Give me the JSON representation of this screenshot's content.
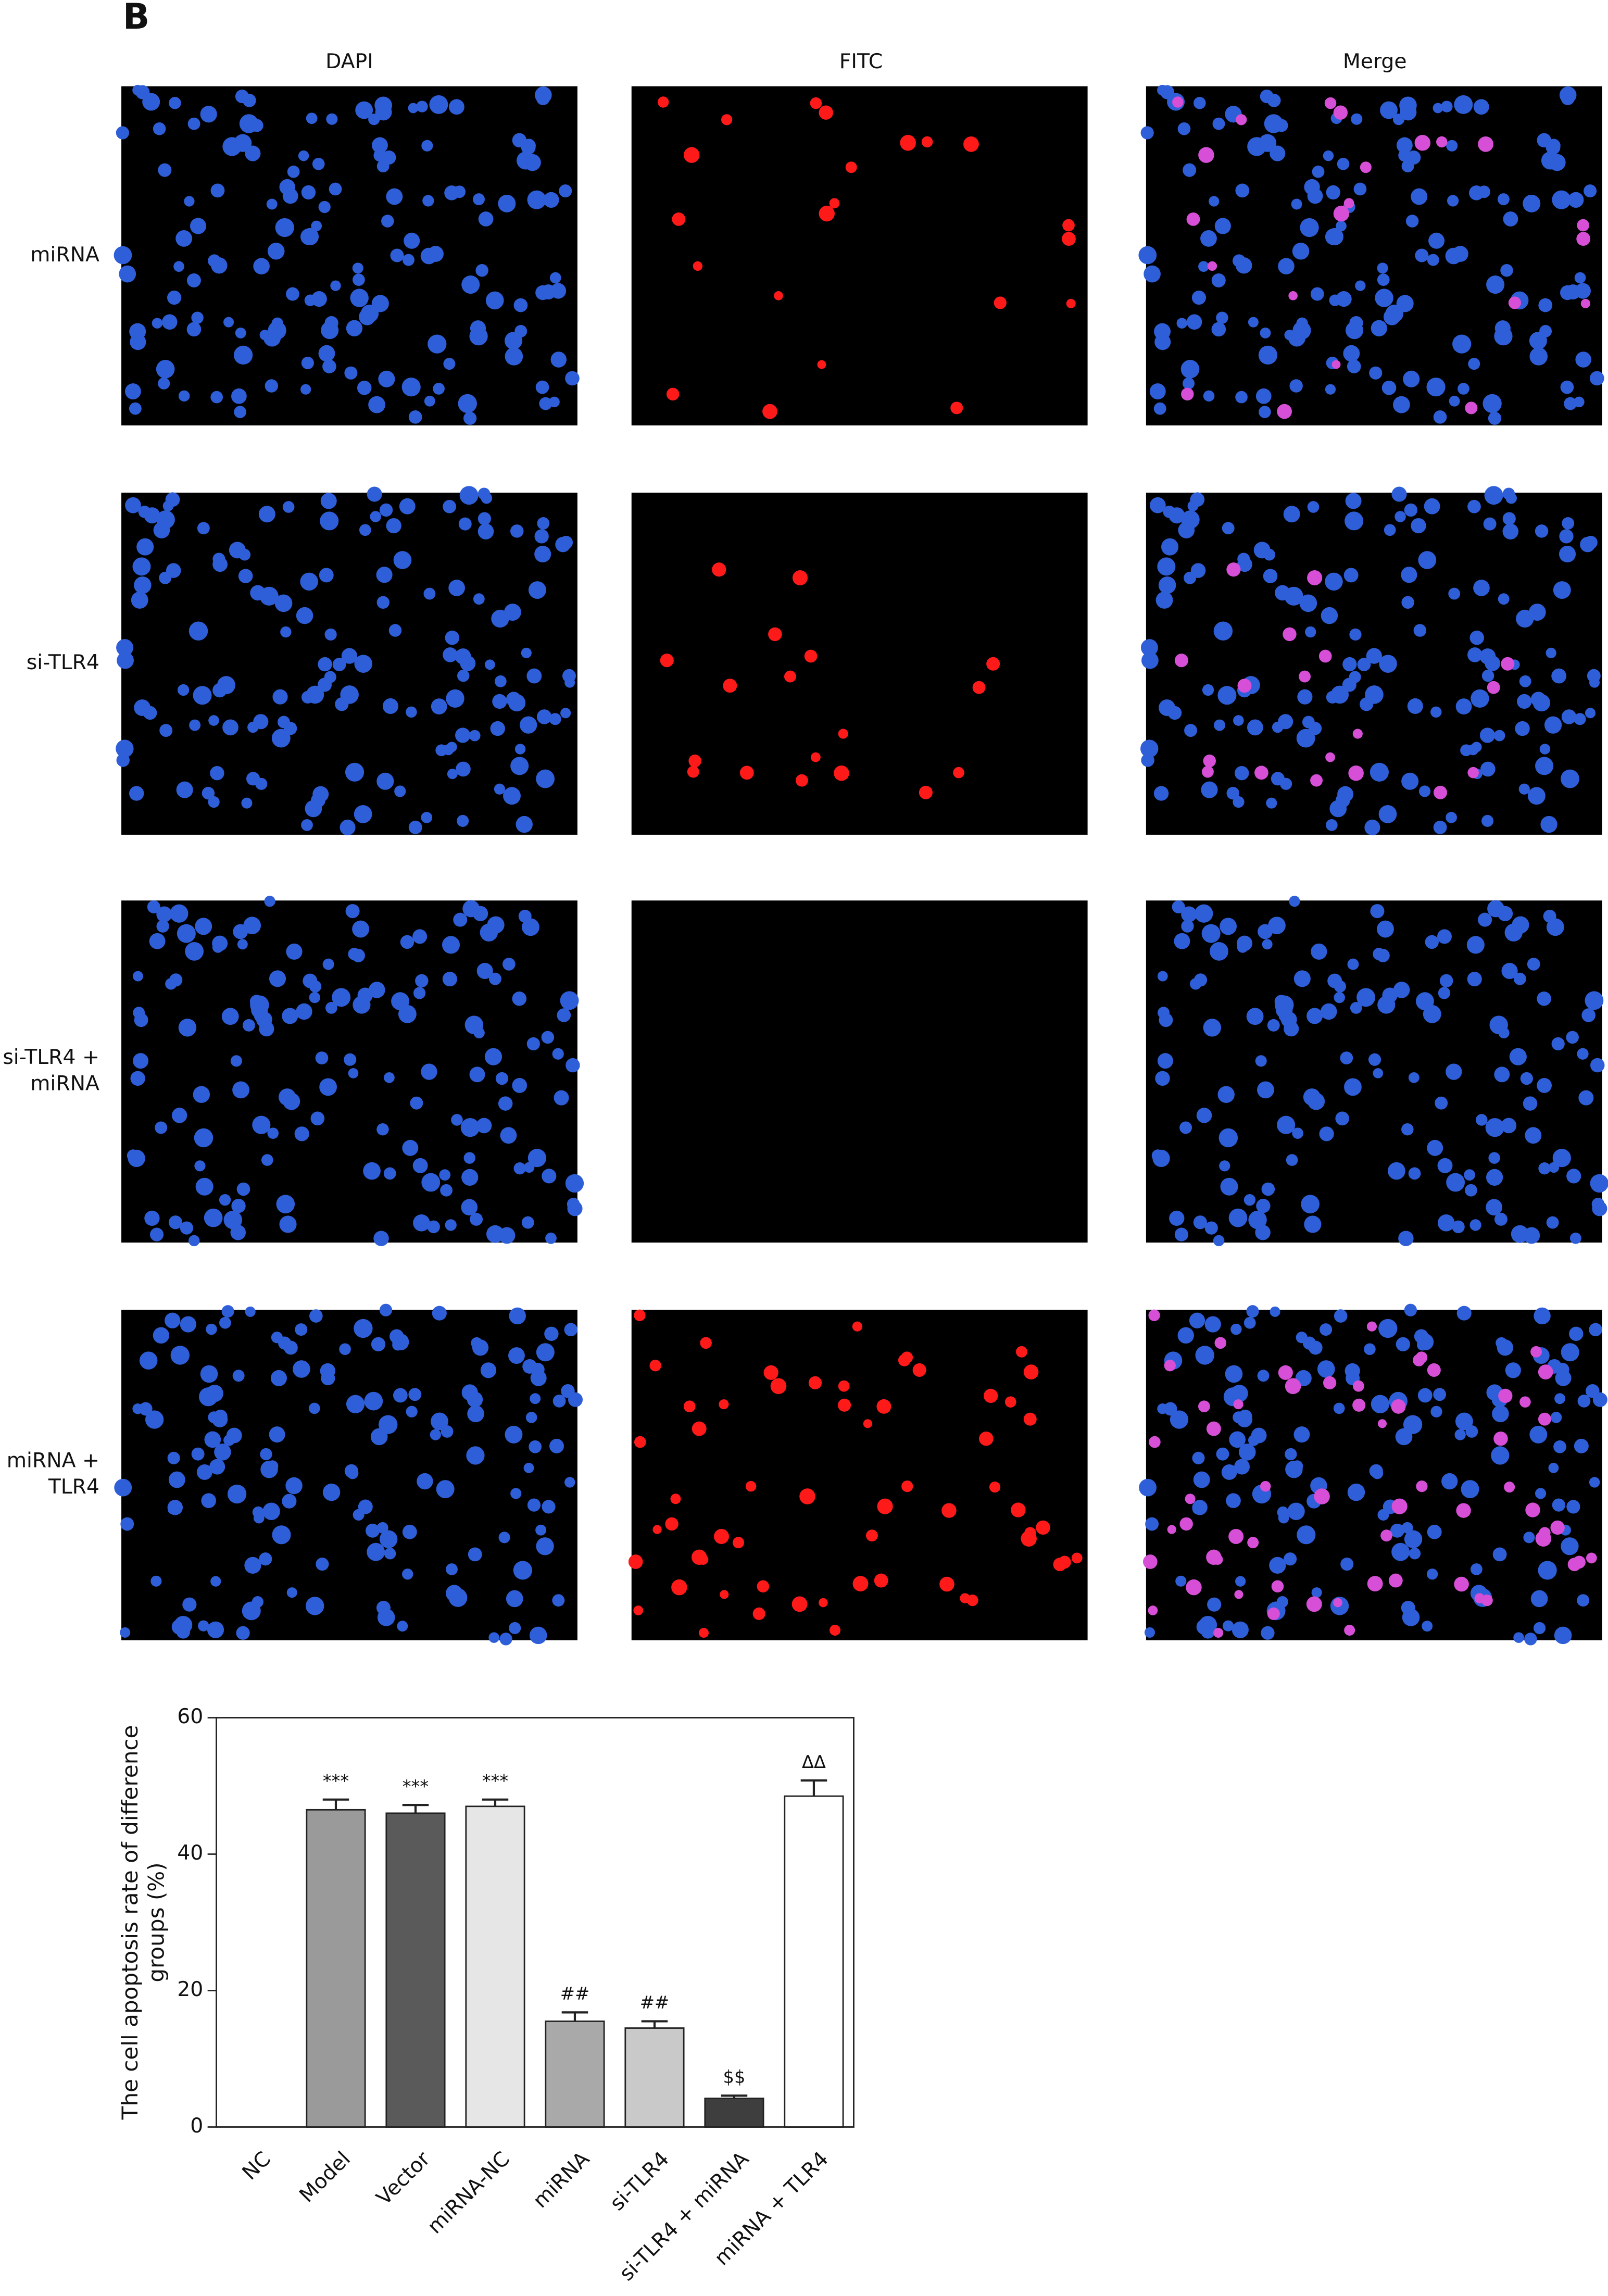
{
  "panel": "B",
  "columns": [
    "DAPI",
    "FITC",
    "Merge"
  ],
  "rows": [
    [
      "miRNA"
    ],
    [
      "si-TLR4"
    ],
    [
      "si-TLR4 +",
      "miRNA"
    ],
    [
      "miRNA +",
      "TLR4"
    ]
  ],
  "chart_data": {
    "type": "bar",
    "ylabel": [
      "The cell apoptosis rate of difference",
      "groups (%)"
    ],
    "categories": [
      "NC",
      "Model",
      "Vector",
      "miRNA-NC",
      "miRNA",
      "si-TLR4",
      "si-TLR4 + miRNA",
      "miRNA + TLR4"
    ],
    "values": [
      0,
      46.5,
      46,
      47,
      15.5,
      14.5,
      4.2,
      48.5
    ],
    "errors": [
      null,
      1.5,
      1.2,
      1.0,
      1.3,
      1.0,
      0.4,
      2.3
    ],
    "colors": [
      "#ffffff",
      "#9a9a9a",
      "#5a5a5a",
      "#e6e6e6",
      "#a9a9a9",
      "#c9c9c9",
      "#3e3e3e",
      "#ffffff"
    ],
    "annotations": [
      null,
      "***",
      "***",
      "***",
      "##",
      "##",
      "$$",
      "ΔΔ"
    ],
    "ylim": [
      0,
      60
    ],
    "yticks": [
      0,
      20,
      40,
      60
    ]
  }
}
